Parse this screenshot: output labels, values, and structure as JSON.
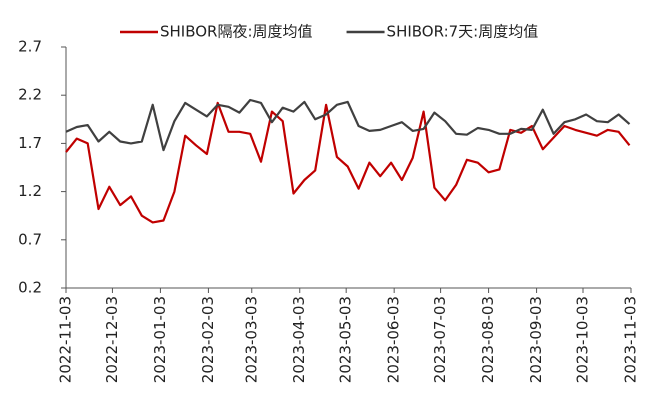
{
  "chart_data": {
    "type": "line",
    "x": [
      "2022-11-03",
      "2022-11-10",
      "2022-11-17",
      "2022-11-24",
      "2022-12-01",
      "2022-12-08",
      "2022-12-15",
      "2022-12-22",
      "2022-12-29",
      "2023-01-05",
      "2023-01-12",
      "2023-01-19",
      "2023-01-26",
      "2023-02-02",
      "2023-02-09",
      "2023-02-16",
      "2023-02-23",
      "2023-03-02",
      "2023-03-09",
      "2023-03-16",
      "2023-03-23",
      "2023-03-30",
      "2023-04-06",
      "2023-04-13",
      "2023-04-20",
      "2023-04-27",
      "2023-05-04",
      "2023-05-11",
      "2023-05-18",
      "2023-05-25",
      "2023-06-01",
      "2023-06-08",
      "2023-06-15",
      "2023-06-22",
      "2023-06-29",
      "2023-07-06",
      "2023-07-13",
      "2023-07-20",
      "2023-07-27",
      "2023-08-03",
      "2023-08-10",
      "2023-08-17",
      "2023-08-24",
      "2023-08-31",
      "2023-09-07",
      "2023-09-14",
      "2023-09-21",
      "2023-09-28",
      "2023-10-05",
      "2023-10-12",
      "2023-10-19",
      "2023-10-26",
      "2023-11-02"
    ],
    "series": [
      {
        "name": "SHIBOR隔夜:周度均值",
        "color": "#c00000",
        "values": [
          1.61,
          1.75,
          1.7,
          1.02,
          1.25,
          1.06,
          1.15,
          0.95,
          0.88,
          0.9,
          1.2,
          1.78,
          1.68,
          1.59,
          2.12,
          1.82,
          1.82,
          1.8,
          1.51,
          2.03,
          1.93,
          1.18,
          1.32,
          1.42,
          2.1,
          1.56,
          1.46,
          1.23,
          1.5,
          1.36,
          1.5,
          1.32,
          1.55,
          2.03,
          1.24,
          1.11,
          1.27,
          1.53,
          1.5,
          1.4,
          1.43,
          1.84,
          1.81,
          1.88,
          1.64,
          1.76,
          1.88,
          1.84,
          1.81,
          1.78,
          1.84,
          1.82,
          1.68
        ]
      },
      {
        "name": "SHIBOR:7天:周度均值",
        "color": "#404040",
        "values": [
          1.82,
          1.87,
          1.89,
          1.72,
          1.82,
          1.72,
          1.7,
          1.72,
          2.1,
          1.63,
          1.93,
          2.12,
          2.05,
          1.98,
          2.1,
          2.08,
          2.02,
          2.15,
          2.12,
          1.92,
          2.07,
          2.03,
          2.13,
          1.95,
          2.0,
          2.1,
          2.13,
          1.88,
          1.83,
          1.84,
          1.88,
          1.92,
          1.83,
          1.85,
          2.02,
          1.93,
          1.8,
          1.79,
          1.86,
          1.84,
          1.8,
          1.8,
          1.85,
          1.84,
          2.05,
          1.8,
          1.92,
          1.95,
          2.0,
          1.93,
          1.92,
          2.0,
          1.9
        ]
      }
    ],
    "xlim": [
      "2022-11-03",
      "2023-11-03"
    ],
    "xticks": [
      "2022-11-03",
      "2022-12-03",
      "2023-01-03",
      "2023-02-03",
      "2023-03-03",
      "2023-04-03",
      "2023-05-03",
      "2023-06-03",
      "2023-07-03",
      "2023-08-03",
      "2023-09-03",
      "2023-10-03",
      "2023-11-03"
    ],
    "ylim": [
      0.2,
      2.7
    ],
    "yticks": [
      0.2,
      0.7,
      1.2,
      1.7,
      2.2,
      2.7
    ],
    "grid": false,
    "legend": "top"
  }
}
